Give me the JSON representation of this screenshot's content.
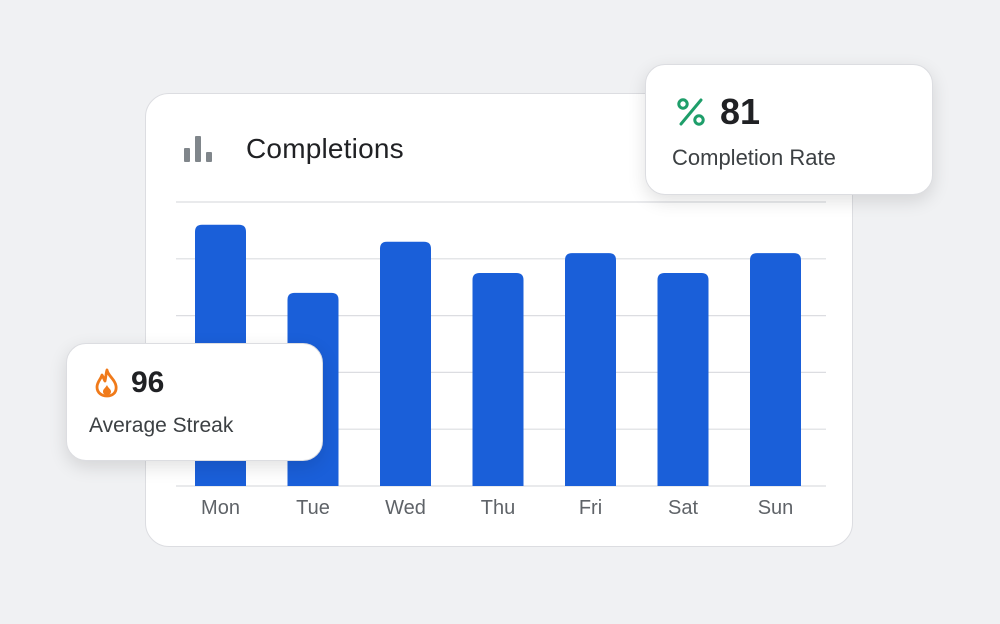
{
  "card": {
    "title": "Completions",
    "icon": "bar-chart-icon"
  },
  "chart_data": {
    "type": "bar",
    "categories": [
      "Mon",
      "Tue",
      "Wed",
      "Thu",
      "Fri",
      "Sat",
      "Sun"
    ],
    "values": [
      92,
      68,
      86,
      75,
      82,
      75,
      82
    ],
    "ylim": [
      0,
      100
    ],
    "grid": true,
    "colors": {
      "bar": "#1a5fd9",
      "grid": "#dcdde1",
      "tick": "#5f6368"
    }
  },
  "stats": {
    "completion_rate": {
      "icon": "percent-icon",
      "icon_color": "#1e9e6a",
      "value": "81",
      "label": "Completion Rate"
    },
    "average_streak": {
      "icon": "flame-icon",
      "icon_color": "#f07a1a",
      "value": "96",
      "label": "Average Streak"
    }
  }
}
